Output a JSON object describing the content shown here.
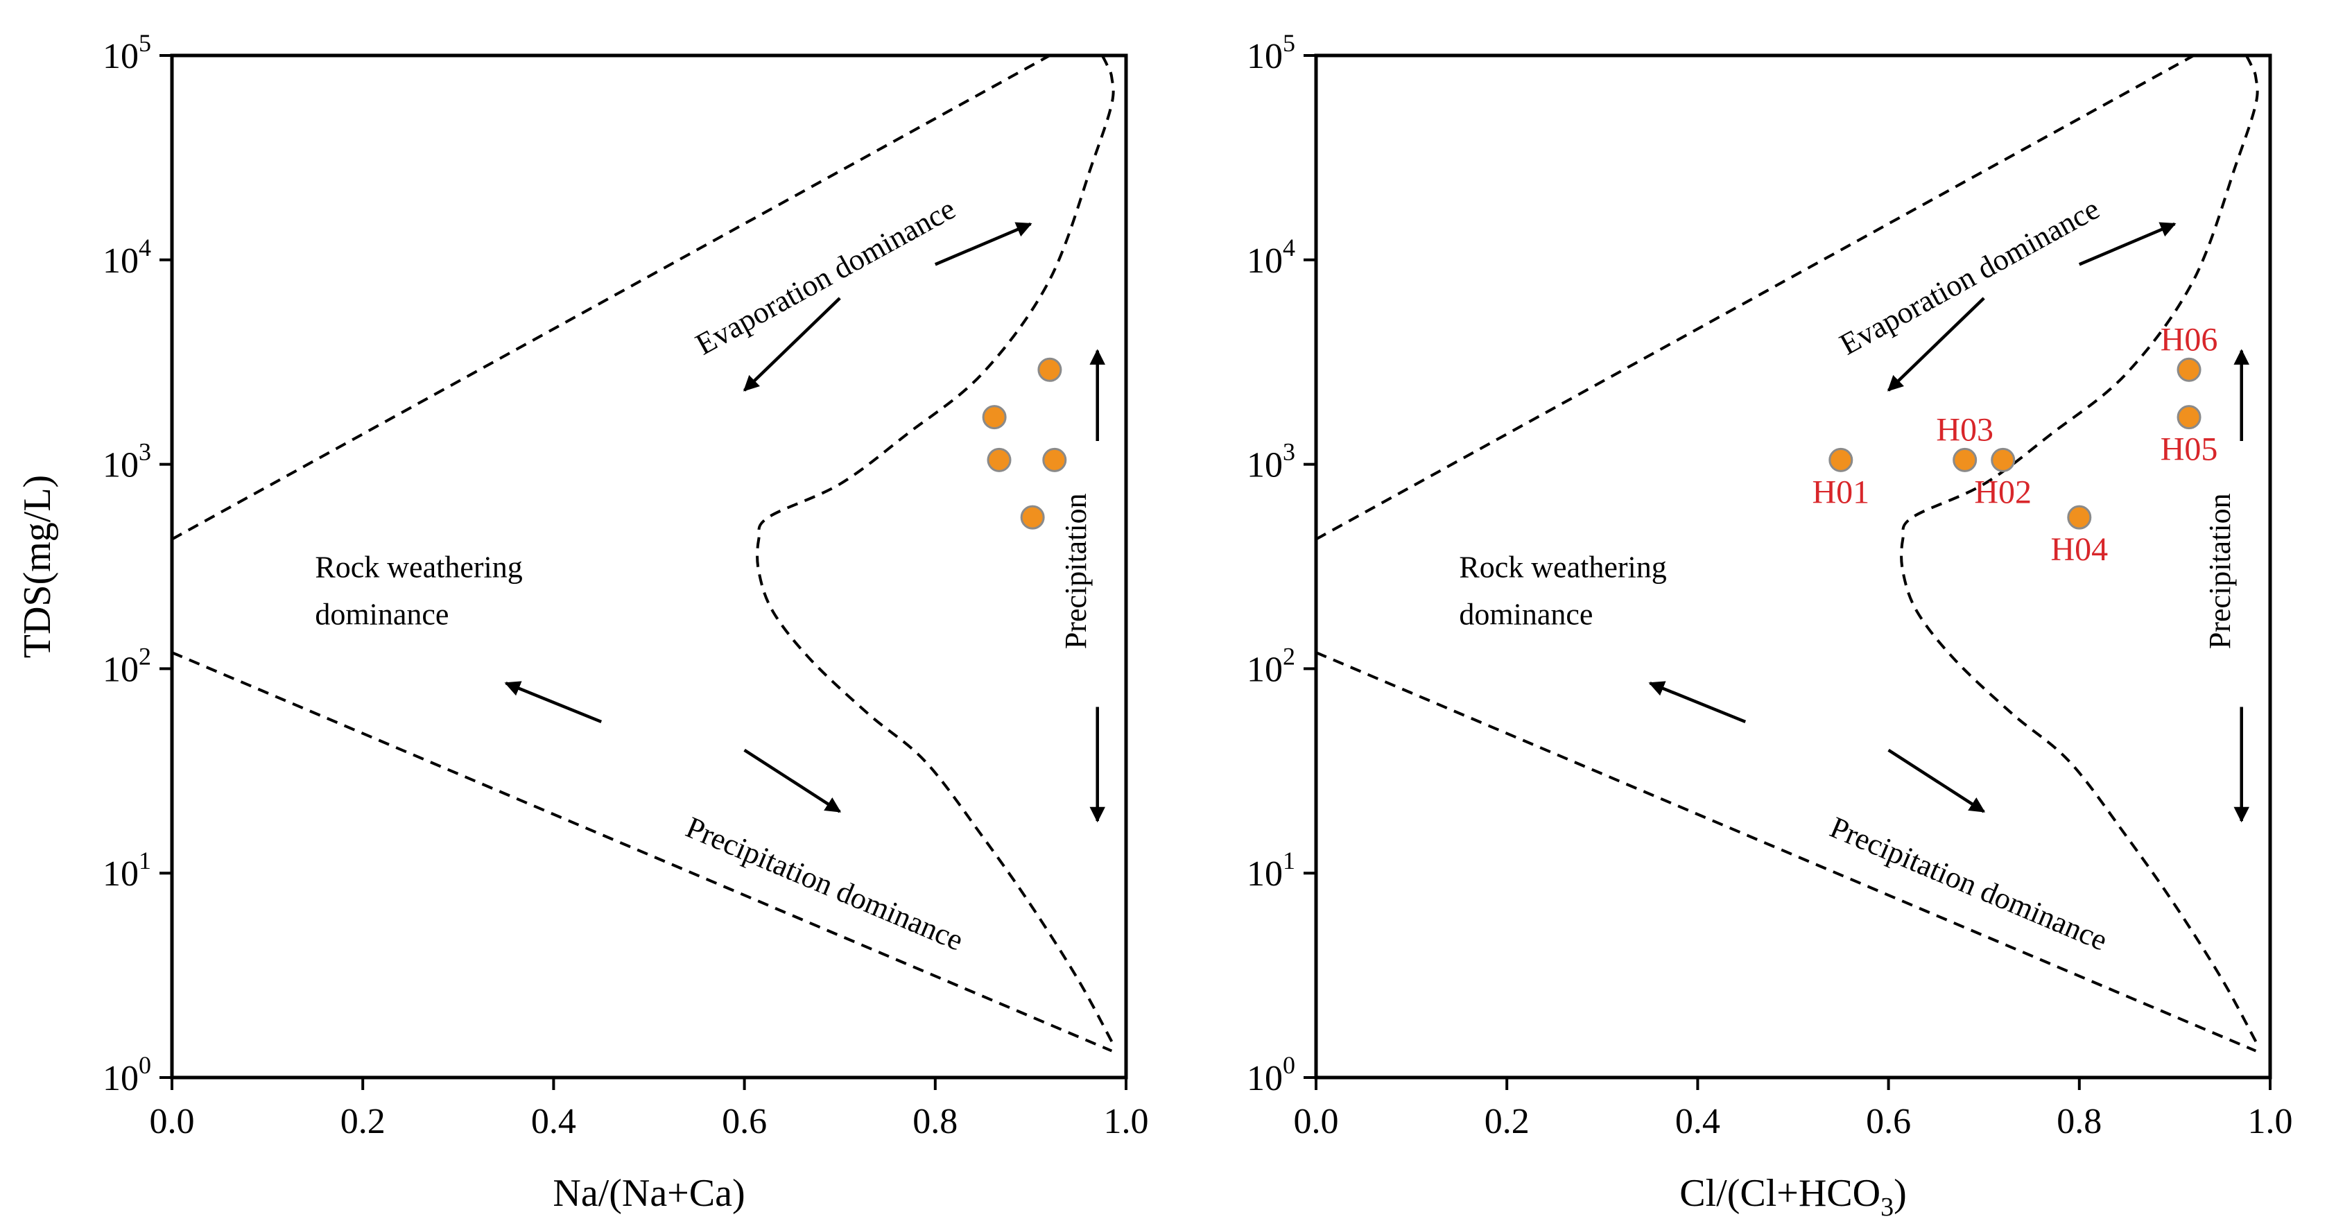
{
  "chart_data": [
    {
      "type": "scatter",
      "id": "na-panel",
      "title": "",
      "xlabel": "Na/(Na+Ca)",
      "ylabel": "TDS(mg/L)",
      "xlim": [
        0,
        1
      ],
      "ylim_log10": [
        0,
        5
      ],
      "x_ticks": [
        "0.0",
        "0.2",
        "0.4",
        "0.6",
        "0.8",
        "1.0"
      ],
      "y_ticks": [
        {
          "base": "10",
          "exp": "0"
        },
        {
          "base": "10",
          "exp": "1"
        },
        {
          "base": "10",
          "exp": "2"
        },
        {
          "base": "10",
          "exp": "3"
        },
        {
          "base": "10",
          "exp": "4"
        },
        {
          "base": "10",
          "exp": "5"
        }
      ],
      "region_labels": {
        "evaporation": "Evaporation dominance",
        "rock_1": "Rock weathering",
        "rock_2": "dominance",
        "precipitation": "Precipitation dominance",
        "precipitation_vertical": "Precipitation"
      },
      "boundaries": {
        "upper_line": [
          [
            0,
            430
          ],
          [
            0.92,
            100000
          ]
        ],
        "lower_line": [
          [
            0,
            120
          ],
          [
            0.985,
            1.35
          ]
        ],
        "curve": [
          [
            0.985,
            1.5
          ],
          [
            0.95,
            3
          ],
          [
            0.9,
            7
          ],
          [
            0.85,
            15
          ],
          [
            0.79,
            35
          ],
          [
            0.73,
            60
          ],
          [
            0.67,
            110
          ],
          [
            0.63,
            190
          ],
          [
            0.615,
            300
          ],
          [
            0.615,
            430
          ],
          [
            0.625,
            550
          ],
          [
            0.7,
            800
          ],
          [
            0.77,
            1400
          ],
          [
            0.85,
            2800
          ],
          [
            0.92,
            8000
          ],
          [
            0.965,
            30000
          ],
          [
            0.985,
            58000
          ],
          [
            0.985,
            78000
          ],
          [
            0.98,
            90000
          ],
          [
            0.975,
            100000
          ]
        ]
      },
      "points": [
        {
          "x": 0.92,
          "y": 2900,
          "label": ""
        },
        {
          "x": 0.862,
          "y": 1700,
          "label": ""
        },
        {
          "x": 0.867,
          "y": 1050,
          "label": ""
        },
        {
          "x": 0.925,
          "y": 1050,
          "label": ""
        },
        {
          "x": 0.902,
          "y": 550,
          "label": ""
        }
      ]
    },
    {
      "type": "scatter",
      "id": "cl-panel",
      "title": "",
      "xlabel": "Cl/(Cl+HCO",
      "xlabel_sub": "3",
      "xlabel_end": ")",
      "ylabel": "",
      "xlim": [
        0,
        1
      ],
      "ylim_log10": [
        0,
        5
      ],
      "x_ticks": [
        "0.0",
        "0.2",
        "0.4",
        "0.6",
        "0.8",
        "1.0"
      ],
      "y_ticks": [
        {
          "base": "10",
          "exp": "0"
        },
        {
          "base": "10",
          "exp": "1"
        },
        {
          "base": "10",
          "exp": "2"
        },
        {
          "base": "10",
          "exp": "3"
        },
        {
          "base": "10",
          "exp": "4"
        },
        {
          "base": "10",
          "exp": "5"
        }
      ],
      "region_labels": {
        "evaporation": "Evaporation dominance",
        "rock_1": "Rock weathering",
        "rock_2": "dominance",
        "precipitation": "Precipitation dominance",
        "precipitation_vertical": "Precipitation"
      },
      "boundaries": {
        "upper_line": [
          [
            0,
            430
          ],
          [
            0.92,
            100000
          ]
        ],
        "lower_line": [
          [
            0,
            120
          ],
          [
            0.985,
            1.35
          ]
        ],
        "curve": [
          [
            0.985,
            1.5
          ],
          [
            0.95,
            3
          ],
          [
            0.9,
            7
          ],
          [
            0.85,
            15
          ],
          [
            0.79,
            35
          ],
          [
            0.73,
            60
          ],
          [
            0.67,
            110
          ],
          [
            0.63,
            190
          ],
          [
            0.615,
            300
          ],
          [
            0.615,
            430
          ],
          [
            0.625,
            550
          ],
          [
            0.7,
            800
          ],
          [
            0.77,
            1400
          ],
          [
            0.85,
            2800
          ],
          [
            0.92,
            8000
          ],
          [
            0.965,
            30000
          ],
          [
            0.985,
            58000
          ],
          [
            0.985,
            78000
          ],
          [
            0.98,
            90000
          ],
          [
            0.975,
            100000
          ]
        ]
      },
      "points": [
        {
          "x": 0.55,
          "y": 1050,
          "label": "H01",
          "label_pos": "below"
        },
        {
          "x": 0.72,
          "y": 1050,
          "label": "H02",
          "label_pos": "below"
        },
        {
          "x": 0.68,
          "y": 1050,
          "label": "H03",
          "label_pos": "above"
        },
        {
          "x": 0.8,
          "y": 550,
          "label": "H04",
          "label_pos": "below"
        },
        {
          "x": 0.915,
          "y": 1700,
          "label": "H05",
          "label_pos": "below"
        },
        {
          "x": 0.915,
          "y": 2900,
          "label": "H06",
          "label_pos": "above"
        }
      ]
    }
  ],
  "colors": {
    "point_fill": "#f0901e",
    "point_stroke": "#8a8a8a",
    "label": "#d8262a",
    "line": "#000000"
  }
}
